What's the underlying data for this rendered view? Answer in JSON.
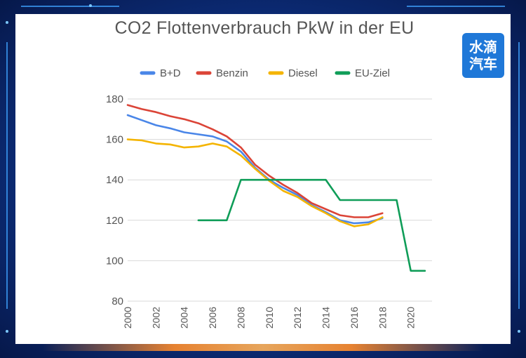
{
  "logo": {
    "line1": "水滴",
    "line2": "汽车"
  },
  "chart_data": {
    "type": "line",
    "title": "CO2 Flottenverbrauch PkW in der EU",
    "xlabel": "",
    "ylabel": "",
    "xlim": [
      2000,
      2021.5
    ],
    "ylim": [
      80,
      180
    ],
    "yticks": [
      80,
      100,
      120,
      140,
      160,
      180
    ],
    "xticks": [
      2000,
      2002,
      2004,
      2006,
      2008,
      2010,
      2012,
      2014,
      2016,
      2018,
      2020
    ],
    "grid": true,
    "legend": "top",
    "series": [
      {
        "name": "B+D",
        "color": "#4a86e8",
        "points": [
          [
            2000,
            172
          ],
          [
            2001,
            169.5
          ],
          [
            2002,
            167
          ],
          [
            2003,
            165.5
          ],
          [
            2004,
            163.5
          ],
          [
            2005,
            162.5
          ],
          [
            2006,
            161.5
          ],
          [
            2007,
            159
          ],
          [
            2008,
            154
          ],
          [
            2009,
            146
          ],
          [
            2010,
            140
          ],
          [
            2011,
            136
          ],
          [
            2012,
            132.5
          ],
          [
            2013,
            127.5
          ],
          [
            2014,
            124
          ],
          [
            2015,
            120
          ],
          [
            2016,
            118.5
          ],
          [
            2017,
            119
          ],
          [
            2018,
            121
          ]
        ]
      },
      {
        "name": "Benzin",
        "color": "#db4437",
        "points": [
          [
            2000,
            177
          ],
          [
            2001,
            175
          ],
          [
            2002,
            173.5
          ],
          [
            2003,
            171.5
          ],
          [
            2004,
            170
          ],
          [
            2005,
            168
          ],
          [
            2006,
            165
          ],
          [
            2007,
            161.5
          ],
          [
            2008,
            156
          ],
          [
            2009,
            147.5
          ],
          [
            2010,
            142
          ],
          [
            2011,
            137.5
          ],
          [
            2012,
            133.5
          ],
          [
            2013,
            128.5
          ],
          [
            2014,
            125.5
          ],
          [
            2015,
            122.5
          ],
          [
            2016,
            121.5
          ],
          [
            2017,
            121.5
          ],
          [
            2018,
            123.5
          ]
        ]
      },
      {
        "name": "Diesel",
        "color": "#f4b400",
        "points": [
          [
            2000,
            160
          ],
          [
            2001,
            159.5
          ],
          [
            2002,
            158
          ],
          [
            2003,
            157.5
          ],
          [
            2004,
            156
          ],
          [
            2005,
            156.5
          ],
          [
            2006,
            158
          ],
          [
            2007,
            156.5
          ],
          [
            2008,
            152
          ],
          [
            2009,
            145.5
          ],
          [
            2010,
            139.5
          ],
          [
            2011,
            134.5
          ],
          [
            2012,
            131.5
          ],
          [
            2013,
            127
          ],
          [
            2014,
            123.5
          ],
          [
            2015,
            119.5
          ],
          [
            2016,
            117
          ],
          [
            2017,
            118
          ],
          [
            2018,
            121.5
          ]
        ]
      },
      {
        "name": "EU-Ziel",
        "color": "#0f9d58",
        "points": [
          [
            2005,
            120
          ],
          [
            2007,
            120
          ],
          [
            2008,
            140
          ],
          [
            2014,
            140
          ],
          [
            2015,
            130
          ],
          [
            2019,
            130
          ],
          [
            2020,
            95
          ],
          [
            2021,
            95
          ]
        ]
      }
    ]
  }
}
